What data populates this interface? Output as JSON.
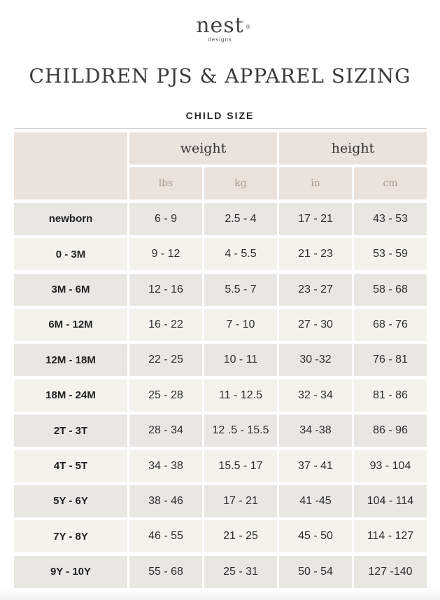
{
  "logo": {
    "word": "nest",
    "reg": "®",
    "sub": "designs"
  },
  "title": "CHILDREN PJS & APPAREL SIZING",
  "section_title": "CHILD SIZE",
  "table": {
    "groups": {
      "weight": "weight",
      "height": "height"
    },
    "units": [
      "lbs",
      "kg",
      "in",
      "cm"
    ],
    "rows": [
      [
        "newborn",
        "6 - 9",
        "2.5 - 4",
        "17 - 21",
        "43 - 53"
      ],
      [
        "0 - 3M",
        "9 - 12",
        "4 - 5.5",
        "21 - 23",
        "53 - 59"
      ],
      [
        "3M - 6M",
        "12 - 16",
        "5.5 - 7",
        "23 - 27",
        "58 - 68"
      ],
      [
        "6M - 12M",
        "16 - 22",
        "7 - 10",
        "27 - 30",
        "68 - 76"
      ],
      [
        "12M - 18M",
        "22 - 25",
        "10 - 11",
        "30 -32",
        "76 - 81"
      ],
      [
        "18M - 24M",
        "25 - 28",
        "11 - 12.5",
        "32 - 34",
        "81 - 86"
      ],
      [
        "2T - 3T",
        "28 - 34",
        "12 .5 - 15.5",
        "34 -38",
        "86 - 96"
      ],
      [
        "4T - 5T",
        "34 - 38",
        "15.5 - 17",
        "37 - 41",
        "93 - 104"
      ],
      [
        "5Y - 6Y",
        "38 - 46",
        "17 - 21",
        "41 -45",
        "104 - 114"
      ],
      [
        "7Y - 8Y",
        "46 - 55",
        "21 - 25",
        "45 - 50",
        "114 - 127"
      ],
      [
        "9Y - 10Y",
        "55 - 68",
        "25 - 31",
        "50 - 54",
        "127 -140"
      ]
    ]
  },
  "colors": {
    "header_bg": "#ece2dc",
    "row_dark": "#e9e7e2",
    "row_light": "#f3f2eb",
    "unit_text": "#a8998f"
  }
}
